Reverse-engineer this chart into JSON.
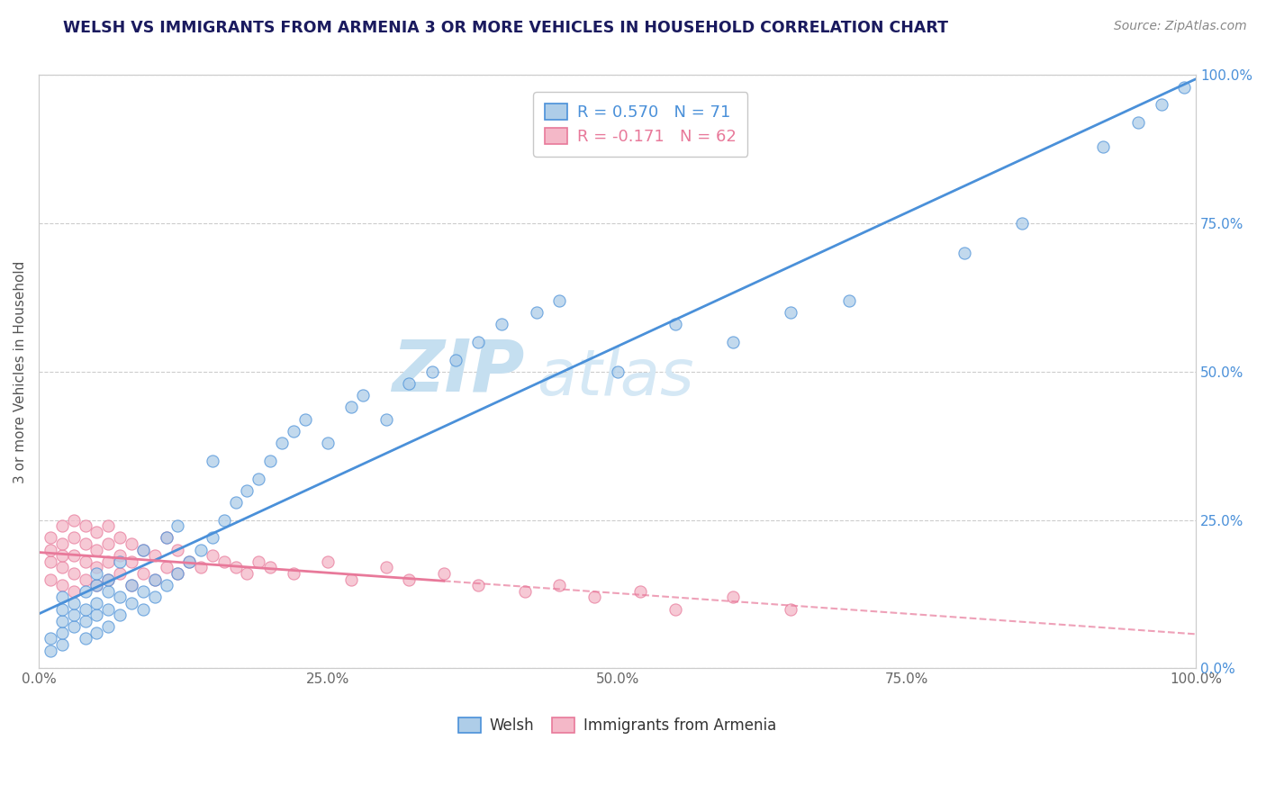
{
  "title": "WELSH VS IMMIGRANTS FROM ARMENIA 3 OR MORE VEHICLES IN HOUSEHOLD CORRELATION CHART",
  "source": "Source: ZipAtlas.com",
  "ylabel": "3 or more Vehicles in Household",
  "legend_welsh": "Welsh",
  "legend_armenia": "Immigrants from Armenia",
  "R_welsh": 0.57,
  "N_welsh": 71,
  "R_armenia": -0.171,
  "N_armenia": 62,
  "xlim": [
    0.0,
    1.0
  ],
  "ylim": [
    0.0,
    1.0
  ],
  "x_ticks": [
    0.0,
    0.25,
    0.5,
    0.75,
    1.0
  ],
  "x_tick_labels": [
    "0.0%",
    "25.0%",
    "50.0%",
    "75.0%",
    "100.0%"
  ],
  "y_ticks": [
    0.0,
    0.25,
    0.5,
    0.75,
    1.0
  ],
  "y_tick_labels_right": [
    "0.0%",
    "25.0%",
    "50.0%",
    "75.0%",
    "100.0%"
  ],
  "color_welsh": "#aecde8",
  "color_armenia": "#f4b8c8",
  "color_welsh_line": "#4a90d9",
  "color_armenia_line": "#e8799a",
  "watermark_zip": "ZIP",
  "watermark_atlas": "atlas",
  "welsh_x": [
    0.01,
    0.01,
    0.02,
    0.02,
    0.02,
    0.02,
    0.02,
    0.03,
    0.03,
    0.03,
    0.04,
    0.04,
    0.04,
    0.04,
    0.05,
    0.05,
    0.05,
    0.05,
    0.05,
    0.06,
    0.06,
    0.06,
    0.06,
    0.07,
    0.07,
    0.07,
    0.08,
    0.08,
    0.09,
    0.09,
    0.09,
    0.1,
    0.1,
    0.11,
    0.11,
    0.12,
    0.12,
    0.13,
    0.14,
    0.15,
    0.15,
    0.16,
    0.17,
    0.18,
    0.19,
    0.2,
    0.21,
    0.22,
    0.23,
    0.25,
    0.27,
    0.28,
    0.3,
    0.32,
    0.34,
    0.36,
    0.38,
    0.4,
    0.43,
    0.45,
    0.5,
    0.55,
    0.6,
    0.65,
    0.7,
    0.8,
    0.85,
    0.92,
    0.95,
    0.97,
    0.99
  ],
  "welsh_y": [
    0.03,
    0.05,
    0.04,
    0.06,
    0.08,
    0.1,
    0.12,
    0.07,
    0.09,
    0.11,
    0.05,
    0.08,
    0.1,
    0.13,
    0.06,
    0.09,
    0.11,
    0.14,
    0.16,
    0.07,
    0.1,
    0.13,
    0.15,
    0.09,
    0.12,
    0.18,
    0.11,
    0.14,
    0.1,
    0.13,
    0.2,
    0.12,
    0.15,
    0.14,
    0.22,
    0.16,
    0.24,
    0.18,
    0.2,
    0.22,
    0.35,
    0.25,
    0.28,
    0.3,
    0.32,
    0.35,
    0.38,
    0.4,
    0.42,
    0.38,
    0.44,
    0.46,
    0.42,
    0.48,
    0.5,
    0.52,
    0.55,
    0.58,
    0.6,
    0.62,
    0.5,
    0.58,
    0.55,
    0.6,
    0.62,
    0.7,
    0.75,
    0.88,
    0.92,
    0.95,
    0.98
  ],
  "armenia_x": [
    0.01,
    0.01,
    0.01,
    0.01,
    0.02,
    0.02,
    0.02,
    0.02,
    0.02,
    0.03,
    0.03,
    0.03,
    0.03,
    0.03,
    0.04,
    0.04,
    0.04,
    0.04,
    0.05,
    0.05,
    0.05,
    0.05,
    0.06,
    0.06,
    0.06,
    0.06,
    0.07,
    0.07,
    0.07,
    0.08,
    0.08,
    0.08,
    0.09,
    0.09,
    0.1,
    0.1,
    0.11,
    0.11,
    0.12,
    0.12,
    0.13,
    0.14,
    0.15,
    0.16,
    0.17,
    0.18,
    0.19,
    0.2,
    0.22,
    0.25,
    0.27,
    0.3,
    0.32,
    0.35,
    0.38,
    0.42,
    0.45,
    0.48,
    0.52,
    0.55,
    0.6,
    0.65
  ],
  "armenia_y": [
    0.15,
    0.18,
    0.2,
    0.22,
    0.14,
    0.17,
    0.19,
    0.21,
    0.24,
    0.13,
    0.16,
    0.19,
    0.22,
    0.25,
    0.15,
    0.18,
    0.21,
    0.24,
    0.14,
    0.17,
    0.2,
    0.23,
    0.15,
    0.18,
    0.21,
    0.24,
    0.16,
    0.19,
    0.22,
    0.14,
    0.18,
    0.21,
    0.16,
    0.2,
    0.15,
    0.19,
    0.17,
    0.22,
    0.16,
    0.2,
    0.18,
    0.17,
    0.19,
    0.18,
    0.17,
    0.16,
    0.18,
    0.17,
    0.16,
    0.18,
    0.15,
    0.17,
    0.15,
    0.16,
    0.14,
    0.13,
    0.14,
    0.12,
    0.13,
    0.1,
    0.12,
    0.1
  ]
}
